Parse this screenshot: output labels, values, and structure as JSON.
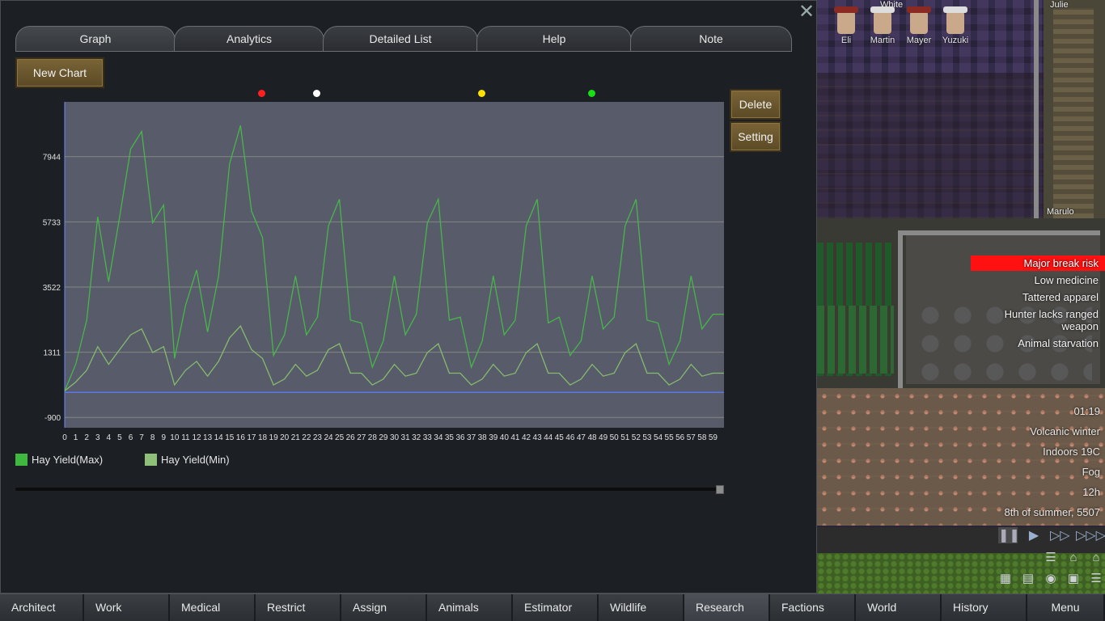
{
  "window": {
    "close_icon": "close-icon",
    "tabs": [
      {
        "label": "Graph",
        "active": true
      },
      {
        "label": "Analytics",
        "active": false
      },
      {
        "label": "Detailed List",
        "active": false
      },
      {
        "label": "Help",
        "active": false
      },
      {
        "label": "Note",
        "active": false
      }
    ],
    "new_chart_label": "New Chart",
    "delete_label": "Delete",
    "setting_label": "Setting",
    "marker_colors": [
      "#ff2020",
      "#ffffff",
      "#ffe000",
      "#18e018"
    ],
    "legend": [
      {
        "label": "Hay Yield(Max)",
        "color": "#3fb83f"
      },
      {
        "label": "Hay Yield(Min)",
        "color": "#8fc07a"
      }
    ],
    "slider_value": 1.0
  },
  "chart_data": {
    "type": "line",
    "x": [
      0,
      1,
      2,
      3,
      4,
      5,
      6,
      7,
      8,
      9,
      10,
      11,
      12,
      13,
      14,
      15,
      16,
      17,
      18,
      19,
      20,
      21,
      22,
      23,
      24,
      25,
      26,
      27,
      28,
      29,
      30,
      31,
      32,
      33,
      34,
      35,
      36,
      37,
      38,
      39,
      40,
      41,
      42,
      43,
      44,
      45,
      46,
      47,
      48,
      49,
      50,
      51,
      52,
      53,
      54,
      55,
      56,
      57,
      58,
      59,
      60
    ],
    "x_tick_labels": [
      "0",
      "1",
      "2",
      "3",
      "4",
      "5",
      "6",
      "7",
      "8",
      "9",
      "10",
      "11",
      "12",
      "13",
      "14",
      "15",
      "16",
      "17",
      "18",
      "19",
      "20",
      "21",
      "22",
      "23",
      "24",
      "25",
      "26",
      "27",
      "28",
      "29",
      "30",
      "31",
      "32",
      "33",
      "34",
      "35",
      "36",
      "37",
      "38",
      "39",
      "40",
      "41",
      "42",
      "43",
      "44",
      "45",
      "46",
      "47",
      "48",
      "49",
      "50",
      "51",
      "52",
      "53",
      "54",
      "55",
      "56",
      "57",
      "58",
      "59"
    ],
    "y_tick_labels": [
      "7944",
      "5733",
      "3522",
      "1311",
      "-900"
    ],
    "ylim": [
      -1250,
      9800
    ],
    "grid": true,
    "series": [
      {
        "name": "Hay Yield(Max)",
        "color": "#49b64a",
        "values": [
          0,
          900,
          2400,
          5900,
          3700,
          5900,
          8200,
          8800,
          5700,
          6300,
          1100,
          2900,
          4100,
          2000,
          3900,
          7700,
          9000,
          6100,
          5200,
          1200,
          1900,
          3900,
          1900,
          2500,
          5600,
          6500,
          2400,
          2300,
          800,
          1700,
          3900,
          1900,
          2600,
          5700,
          6500,
          2400,
          2500,
          800,
          1700,
          3900,
          1900,
          2400,
          5600,
          6500,
          2300,
          2500,
          1200,
          1700,
          3900,
          2100,
          2500,
          5600,
          6500,
          2400,
          2300,
          900,
          1700,
          3900,
          2100,
          2600,
          2600
        ]
      },
      {
        "name": "Hay Yield(Min)",
        "color": "#86bb6e",
        "values": [
          0,
          300,
          700,
          1500,
          900,
          1400,
          1900,
          2100,
          1300,
          1500,
          200,
          700,
          1000,
          500,
          1000,
          1800,
          2200,
          1400,
          1100,
          200,
          400,
          900,
          500,
          700,
          1400,
          1600,
          600,
          600,
          200,
          400,
          900,
          500,
          600,
          1300,
          1600,
          600,
          600,
          200,
          400,
          900,
          500,
          600,
          1300,
          1600,
          600,
          600,
          200,
          400,
          900,
          500,
          600,
          1300,
          1600,
          600,
          600,
          200,
          400,
          900,
          500,
          600,
          600
        ]
      }
    ],
    "baseline_value": -50
  },
  "map": {
    "pawns": [
      {
        "name": "Eli",
        "style": "red"
      },
      {
        "name": "Martin",
        "style": "gray"
      },
      {
        "name": "Mayer",
        "style": "red"
      },
      {
        "name": "Yuzuki",
        "style": "gray"
      }
    ],
    "labels": {
      "white": "White",
      "julie": "Julie",
      "marulo": "Marulo"
    },
    "alerts": [
      {
        "text": "Major break risk",
        "danger": true
      },
      {
        "text": "Low medicine",
        "danger": false
      },
      {
        "text": "Tattered apparel",
        "danger": false
      },
      {
        "text": "Hunter lacks ranged weapon",
        "danger": false
      },
      {
        "text": "Animal starvation",
        "danger": false
      }
    ],
    "time": {
      "clock": "01:19",
      "season": "Volcanic winter",
      "temperature": "Indoors 19C",
      "weather": "Fog",
      "hour": "12h",
      "date": "8th of summer, 5507"
    }
  },
  "bottom_bar": [
    {
      "label": "Architect"
    },
    {
      "label": "Work"
    },
    {
      "label": "Medical"
    },
    {
      "label": "Restrict"
    },
    {
      "label": "Assign"
    },
    {
      "label": "Animals"
    },
    {
      "label": "Estimator"
    },
    {
      "label": "Wildlife"
    },
    {
      "label": "Research",
      "active": true
    },
    {
      "label": "Factions"
    },
    {
      "label": "World"
    },
    {
      "label": "History"
    },
    {
      "label": "Menu"
    }
  ]
}
